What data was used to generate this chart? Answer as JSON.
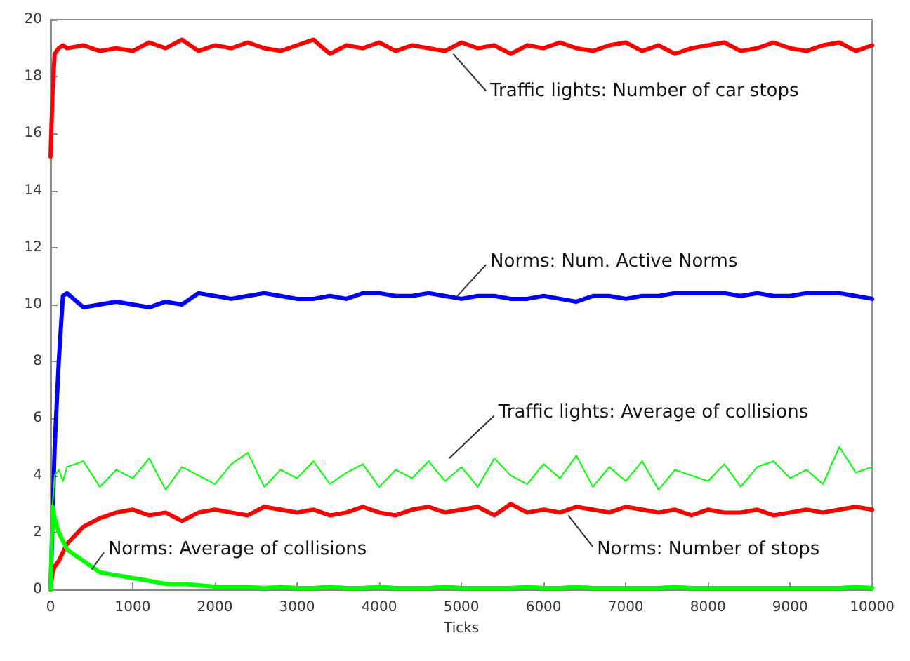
{
  "chart_data": {
    "type": "line",
    "xlabel": "Ticks",
    "x": [
      0,
      25,
      50,
      100,
      150,
      200,
      400,
      600,
      800,
      1000,
      1200,
      1400,
      1600,
      1800,
      2000,
      2200,
      2400,
      2600,
      2800,
      3000,
      3200,
      3400,
      3600,
      3800,
      4000,
      4200,
      4400,
      4600,
      4800,
      5000,
      5200,
      5400,
      5600,
      5800,
      6000,
      6200,
      6400,
      6600,
      6800,
      7000,
      7200,
      7400,
      7600,
      7800,
      8000,
      8200,
      8400,
      8600,
      8800,
      9000,
      9200,
      9400,
      9600,
      9800,
      10000
    ],
    "xlim": [
      0,
      10000
    ],
    "xticks": [
      0,
      1000,
      2000,
      3000,
      4000,
      5000,
      6000,
      7000,
      8000,
      9000,
      10000
    ],
    "ylim": [
      0,
      20
    ],
    "yticks": [
      0,
      2,
      4,
      6,
      8,
      10,
      12,
      14,
      16,
      18,
      20
    ],
    "grid": false,
    "legend": false,
    "marker": "none",
    "line_style": "solid",
    "series": [
      {
        "name": "Traffic lights: Number of car stops",
        "color": "#ff0000",
        "values": [
          15.2,
          17.5,
          18.8,
          19.0,
          19.1,
          19.0,
          19.1,
          18.9,
          19.0,
          18.9,
          19.2,
          19.0,
          19.3,
          18.9,
          19.1,
          19.0,
          19.2,
          19.0,
          18.9,
          19.1,
          19.3,
          18.8,
          19.1,
          19.0,
          19.2,
          18.9,
          19.1,
          19.0,
          18.9,
          19.2,
          19.0,
          19.1,
          18.8,
          19.1,
          19.0,
          19.2,
          19.0,
          18.9,
          19.1,
          19.2,
          18.9,
          19.1,
          18.8,
          19.0,
          19.1,
          19.2,
          18.9,
          19.0,
          19.2,
          19.0,
          18.9,
          19.1,
          19.2,
          18.9,
          19.1
        ]
      },
      {
        "name": "Norms: Num. Active Norms",
        "color": "#0000ff",
        "values": [
          0,
          2.5,
          5,
          8,
          10.3,
          10.4,
          9.9,
          10.0,
          10.1,
          10.0,
          9.9,
          10.1,
          10.0,
          10.4,
          10.3,
          10.2,
          10.3,
          10.4,
          10.3,
          10.2,
          10.2,
          10.3,
          10.2,
          10.4,
          10.4,
          10.3,
          10.3,
          10.4,
          10.3,
          10.2,
          10.3,
          10.3,
          10.2,
          10.2,
          10.3,
          10.2,
          10.1,
          10.3,
          10.3,
          10.2,
          10.3,
          10.3,
          10.4,
          10.4,
          10.4,
          10.4,
          10.3,
          10.4,
          10.3,
          10.3,
          10.4,
          10.4,
          10.4,
          10.3,
          10.2
        ]
      },
      {
        "name": "Traffic lights: Average of collisions",
        "color": "#00ff00",
        "values": [
          0,
          3.0,
          4.0,
          4.2,
          3.8,
          4.3,
          4.5,
          3.6,
          4.2,
          3.9,
          4.6,
          3.5,
          4.3,
          4.0,
          3.7,
          4.4,
          4.8,
          3.6,
          4.2,
          3.9,
          4.5,
          3.7,
          4.1,
          4.4,
          3.6,
          4.2,
          3.9,
          4.5,
          3.8,
          4.3,
          3.6,
          4.6,
          4.0,
          3.7,
          4.4,
          3.9,
          4.7,
          3.6,
          4.3,
          3.8,
          4.5,
          3.5,
          4.2,
          4.0,
          3.8,
          4.4,
          3.6,
          4.3,
          4.5,
          3.9,
          4.2,
          3.7,
          5.0,
          4.1,
          4.3
        ]
      },
      {
        "name": "Norms: Number of stops",
        "color": "#ff0000",
        "values": [
          0,
          0.6,
          0.8,
          1.0,
          1.3,
          1.6,
          2.2,
          2.5,
          2.7,
          2.8,
          2.6,
          2.7,
          2.4,
          2.7,
          2.8,
          2.7,
          2.6,
          2.9,
          2.8,
          2.7,
          2.8,
          2.6,
          2.7,
          2.9,
          2.7,
          2.6,
          2.8,
          2.9,
          2.7,
          2.8,
          2.9,
          2.6,
          3.0,
          2.7,
          2.8,
          2.7,
          2.9,
          2.8,
          2.7,
          2.9,
          2.8,
          2.7,
          2.8,
          2.6,
          2.8,
          2.7,
          2.7,
          2.8,
          2.6,
          2.7,
          2.8,
          2.7,
          2.8,
          2.9,
          2.8
        ]
      },
      {
        "name": "Norms: Average of collisions",
        "color": "#00ff00",
        "values": [
          0,
          2.9,
          2.5,
          2.0,
          1.7,
          1.4,
          1.0,
          0.6,
          0.5,
          0.4,
          0.3,
          0.2,
          0.2,
          0.15,
          0.1,
          0.1,
          0.1,
          0.05,
          0.1,
          0.05,
          0.05,
          0.1,
          0.05,
          0.05,
          0.1,
          0.05,
          0.05,
          0.05,
          0.1,
          0.05,
          0.05,
          0.05,
          0.05,
          0.1,
          0.05,
          0.05,
          0.1,
          0.05,
          0.05,
          0.05,
          0.05,
          0.05,
          0.1,
          0.05,
          0.05,
          0.05,
          0.05,
          0.05,
          0.05,
          0.05,
          0.05,
          0.05,
          0.05,
          0.1,
          0.05
        ]
      }
    ]
  }
}
